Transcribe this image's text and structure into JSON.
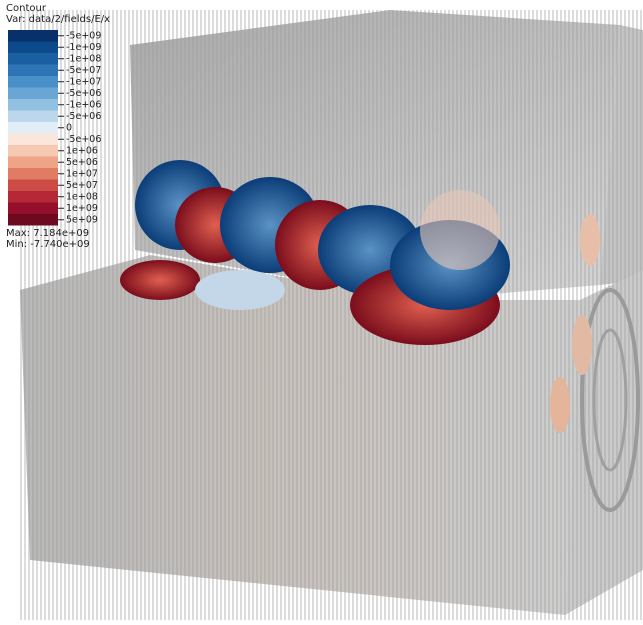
{
  "legend": {
    "title": "Contour",
    "variable": "Var: data/2/fields/E/x",
    "labels": [
      "-5e+09",
      "-1e+09",
      "-1e+08",
      "-5e+07",
      "-1e+07",
      "-5e+06",
      "-1e+06",
      "-5e+06",
      "0",
      "-5e+06",
      "1e+06",
      "5e+06",
      "1e+07",
      "5e+07",
      "1e+08",
      "1e+09",
      "5e+09"
    ],
    "max": "Max: 7.184e+09",
    "min": "Min: -7.740e+09"
  }
}
